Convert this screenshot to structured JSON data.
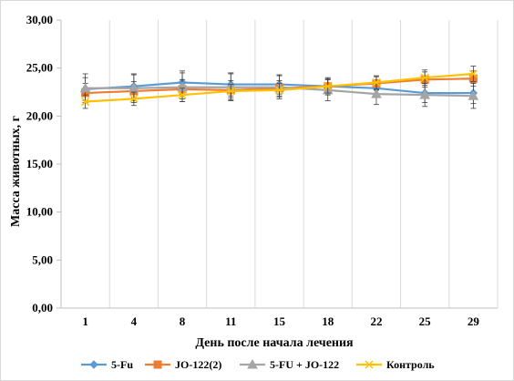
{
  "chart_data": {
    "type": "line",
    "title": "",
    "xlabel": "День после начала лечения",
    "ylabel": "Масса животных, г",
    "categories": [
      "1",
      "4",
      "8",
      "11",
      "15",
      "18",
      "22",
      "25",
      "29"
    ],
    "y_ticks": [
      "0,00",
      "5,00",
      "10,00",
      "15,00",
      "20,00",
      "25,00",
      "30,00"
    ],
    "ylim": [
      0,
      30
    ],
    "grid": "vertical",
    "legend_position": "bottom",
    "error_bars": true,
    "series": [
      {
        "name": "5-Fu",
        "color": "#5b9bd5",
        "marker": "diamond",
        "values": [
          22.8,
          23.1,
          23.5,
          23.3,
          23.3,
          23.1,
          22.9,
          22.4,
          22.4
        ],
        "errors": [
          1.2,
          1.2,
          1.2,
          1.2,
          1.0,
          0.9,
          0.9,
          1.0,
          1.1
        ]
      },
      {
        "name": "JO-122(2)",
        "color": "#ed7d31",
        "marker": "square",
        "values": [
          22.4,
          22.6,
          22.8,
          22.7,
          22.9,
          23.1,
          23.4,
          23.8,
          23.9
        ],
        "errors": [
          1.0,
          1.0,
          1.0,
          1.0,
          0.8,
          0.8,
          0.7,
          0.8,
          0.8
        ]
      },
      {
        "name": "5-FU + JO-122",
        "color": "#a5a5a5",
        "marker": "triangle",
        "values": [
          22.9,
          22.9,
          23.0,
          23.0,
          23.0,
          22.7,
          22.3,
          22.2,
          22.1
        ],
        "errors": [
          1.5,
          1.5,
          1.5,
          1.4,
          1.2,
          1.1,
          1.1,
          1.2,
          1.3
        ]
      },
      {
        "name": "Контроль",
        "color": "#ffc000",
        "marker": "x",
        "values": [
          21.5,
          21.8,
          22.2,
          22.6,
          22.7,
          23.1,
          23.5,
          24.0,
          24.4
        ],
        "errors": [
          0.7,
          0.7,
          0.7,
          0.7,
          0.7,
          0.7,
          0.7,
          0.8,
          0.8
        ]
      }
    ]
  }
}
